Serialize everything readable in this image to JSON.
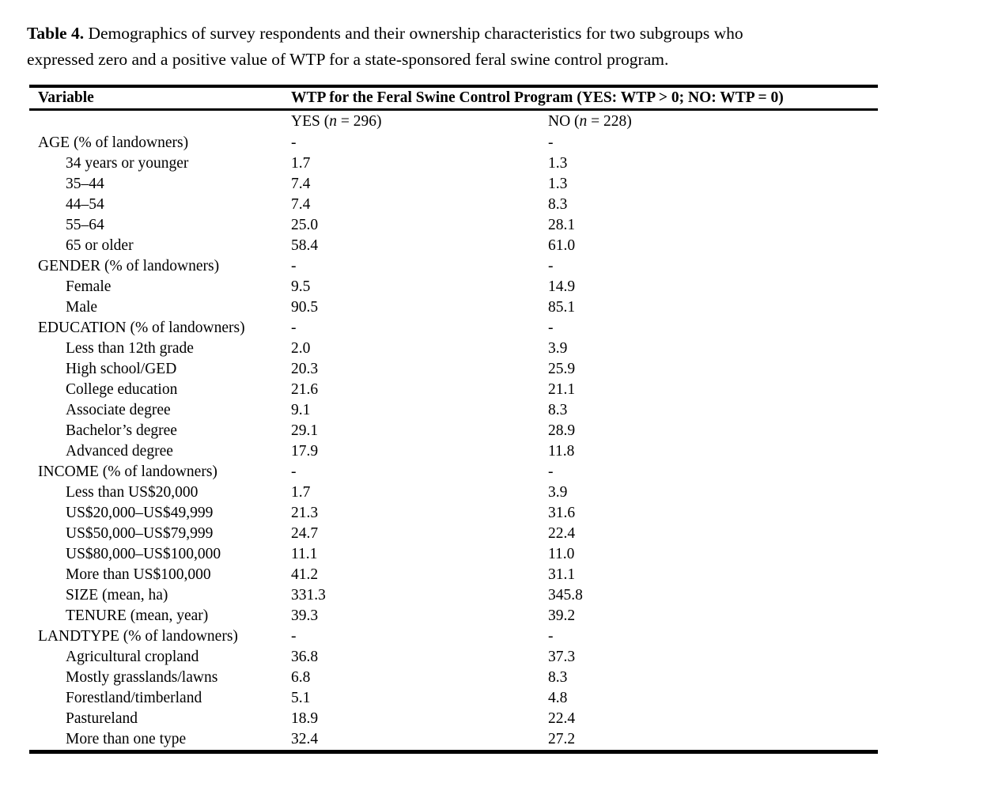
{
  "caption": {
    "label": "Table 4.",
    "line1_rest": " Demographics of survey respondents and their ownership characteristics for two subgroups who",
    "line2": "expressed zero and a positive value of WTP for a state-sponsored feral swine control program."
  },
  "table": {
    "header": {
      "variable": "Variable",
      "wtp": "WTP for the Feral Swine Control Program (YES: WTP > 0; NO: WTP = 0)"
    },
    "subheader": {
      "yes_pre": "YES (",
      "yes_n": "n",
      "yes_post": " = 296)",
      "no_pre": "NO (",
      "no_n": "n",
      "no_post": " = 228)"
    },
    "rows": [
      {
        "label": "AGE (% of landowners)",
        "indent": false,
        "yes": "-",
        "no": "-"
      },
      {
        "label": "34 years or younger",
        "indent": true,
        "yes": "1.7",
        "no": "1.3"
      },
      {
        "label": "35–44",
        "indent": true,
        "yes": "7.4",
        "no": "1.3"
      },
      {
        "label": "44–54",
        "indent": true,
        "yes": "7.4",
        "no": "8.3"
      },
      {
        "label": "55–64",
        "indent": true,
        "yes": "25.0",
        "no": "28.1"
      },
      {
        "label": "65 or older",
        "indent": true,
        "yes": "58.4",
        "no": "61.0"
      },
      {
        "label": "GENDER (% of landowners)",
        "indent": false,
        "yes": "-",
        "no": "-"
      },
      {
        "label": "Female",
        "indent": true,
        "yes": "9.5",
        "no": "14.9"
      },
      {
        "label": "Male",
        "indent": true,
        "yes": "90.5",
        "no": "85.1"
      },
      {
        "label": "EDUCATION (% of landowners)",
        "indent": false,
        "yes": "-",
        "no": "-"
      },
      {
        "label": "Less than 12th grade",
        "indent": true,
        "yes": "2.0",
        "no": "3.9"
      },
      {
        "label": "High school/GED",
        "indent": true,
        "yes": "20.3",
        "no": "25.9"
      },
      {
        "label": "College education",
        "indent": true,
        "yes": "21.6",
        "no": "21.1"
      },
      {
        "label": "Associate degree",
        "indent": true,
        "yes": "9.1",
        "no": "8.3"
      },
      {
        "label": "Bachelor’s degree",
        "indent": true,
        "yes": "29.1",
        "no": "28.9"
      },
      {
        "label": "Advanced degree",
        "indent": true,
        "yes": "17.9",
        "no": "11.8"
      },
      {
        "label": "INCOME (% of landowners)",
        "indent": false,
        "yes": "-",
        "no": "-"
      },
      {
        "label": "Less than US$20,000",
        "indent": true,
        "yes": "1.7",
        "no": "3.9"
      },
      {
        "label": "US$20,000–US$49,999",
        "indent": true,
        "yes": "21.3",
        "no": "31.6"
      },
      {
        "label": "US$50,000–US$79,999",
        "indent": true,
        "yes": "24.7",
        "no": "22.4"
      },
      {
        "label": "US$80,000–US$100,000",
        "indent": true,
        "yes": "11.1",
        "no": "11.0"
      },
      {
        "label": "More than US$100,000",
        "indent": true,
        "yes": "41.2",
        "no": "31.1"
      },
      {
        "label": "SIZE (mean, ha)",
        "indent": true,
        "yes": "331.3",
        "no": "345.8"
      },
      {
        "label": "TENURE (mean, year)",
        "indent": true,
        "yes": "39.3",
        "no": "39.2"
      },
      {
        "label": "LANDTYPE (% of landowners)",
        "indent": false,
        "yes": "-",
        "no": "-"
      },
      {
        "label": "Agricultural cropland",
        "indent": true,
        "yes": "36.8",
        "no": "37.3"
      },
      {
        "label": "Mostly grasslands/lawns",
        "indent": true,
        "yes": "6.8",
        "no": "8.3"
      },
      {
        "label": "Forestland/timberland",
        "indent": true,
        "yes": "5.1",
        "no": "4.8"
      },
      {
        "label": "Pastureland",
        "indent": true,
        "yes": "18.9",
        "no": "22.4"
      },
      {
        "label": "More than one type",
        "indent": true,
        "yes": "32.4",
        "no": "27.2"
      }
    ]
  }
}
